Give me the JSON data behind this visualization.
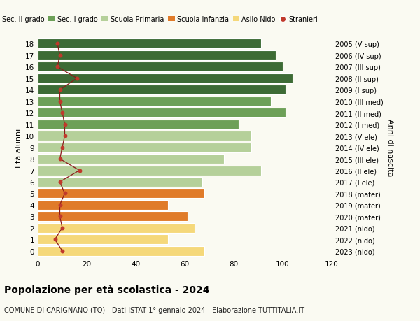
{
  "ages": [
    18,
    17,
    16,
    15,
    14,
    13,
    12,
    11,
    10,
    9,
    8,
    7,
    6,
    5,
    4,
    3,
    2,
    1,
    0
  ],
  "right_labels": [
    "2005 (V sup)",
    "2006 (IV sup)",
    "2007 (III sup)",
    "2008 (II sup)",
    "2009 (I sup)",
    "2010 (III med)",
    "2011 (II med)",
    "2012 (I med)",
    "2013 (V ele)",
    "2014 (IV ele)",
    "2015 (III ele)",
    "2016 (II ele)",
    "2017 (I ele)",
    "2018 (mater)",
    "2019 (mater)",
    "2020 (mater)",
    "2021 (nido)",
    "2022 (nido)",
    "2023 (nido)"
  ],
  "bar_values": [
    91,
    97,
    100,
    104,
    101,
    95,
    101,
    82,
    87,
    87,
    76,
    91,
    67,
    68,
    53,
    61,
    64,
    53,
    68
  ],
  "bar_colors": [
    "#3d6b35",
    "#3d6b35",
    "#3d6b35",
    "#3d6b35",
    "#3d6b35",
    "#6da058",
    "#6da058",
    "#6da058",
    "#b5d09a",
    "#b5d09a",
    "#b5d09a",
    "#b5d09a",
    "#b5d09a",
    "#e07b2a",
    "#e07b2a",
    "#e07b2a",
    "#f5d87a",
    "#f5d87a",
    "#f5d87a"
  ],
  "stranieri_values": [
    8,
    9,
    8,
    16,
    9,
    9,
    10,
    11,
    11,
    10,
    9,
    17,
    9,
    11,
    9,
    9,
    10,
    7,
    10
  ],
  "legend_labels": [
    "Sec. II grado",
    "Sec. I grado",
    "Scuola Primaria",
    "Scuola Infanzia",
    "Asilo Nido",
    "Stranieri"
  ],
  "legend_colors": [
    "#3d6b35",
    "#6da058",
    "#b5d09a",
    "#e07b2a",
    "#f5d87a",
    "#c0392b"
  ],
  "title": "Popolazione per età scolastica - 2024",
  "subtitle": "COMUNE DI CARIGNANO (TO) - Dati ISTAT 1° gennaio 2024 - Elaborazione TUTTITALIA.IT",
  "ylabel_left": "Età alunni",
  "ylabel_right": "Anni di nascita",
  "xlim": [
    0,
    120
  ],
  "xticks": [
    0,
    20,
    40,
    60,
    80,
    100,
    120
  ],
  "background_color": "#fafaf2",
  "bar_edge_color": "white",
  "stranieri_color": "#c0392b",
  "stranieri_line_color": "#8b1a1a",
  "grid_color": "#cccccc"
}
